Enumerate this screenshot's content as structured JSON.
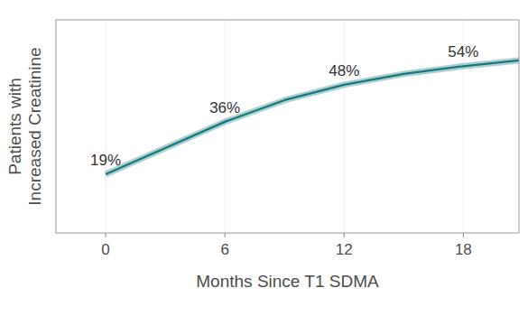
{
  "chart_data": {
    "type": "line",
    "xlabel": "Months Since T1 SDMA",
    "ylabel": "Patients with\nIncreased Creatinine",
    "x": [
      0,
      3,
      6,
      9,
      12,
      15,
      18,
      21
    ],
    "series": [
      {
        "name": "Patients with Increased Creatinine",
        "color": "#16777c",
        "values": [
          19,
          27.5,
          36,
          43,
          48,
          51.5,
          54,
          56
        ]
      }
    ],
    "xlim": [
      -2.5,
      20.8
    ],
    "xticks": [
      0,
      6,
      12,
      18
    ],
    "ylim": [
      0,
      69
    ],
    "tick_labels": "x",
    "grid": true,
    "annotations": [
      {
        "x": 0,
        "y": 19,
        "text": "19%"
      },
      {
        "x": 6,
        "y": 36,
        "text": "36%"
      },
      {
        "x": 12,
        "y": 48,
        "text": "48%"
      },
      {
        "x": 18,
        "y": 54,
        "text": "54%"
      }
    ]
  }
}
